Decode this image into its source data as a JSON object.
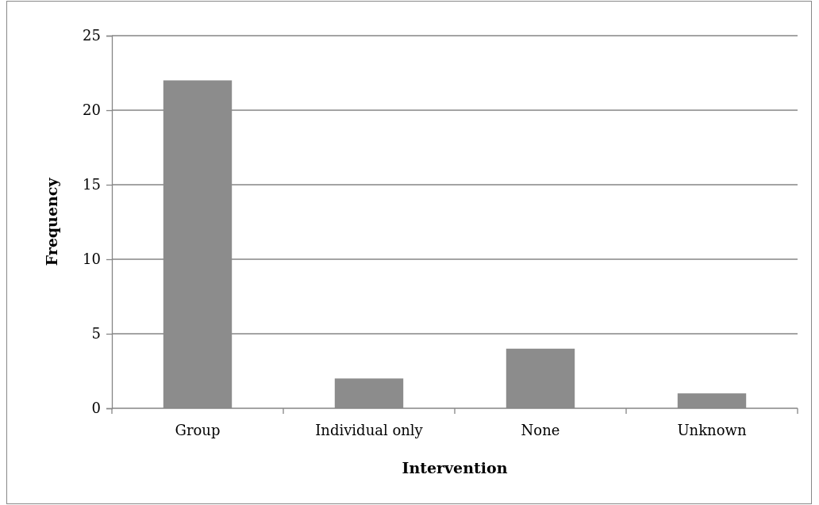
{
  "chart_data": {
    "type": "bar",
    "xlabel": "Intervention",
    "ylabel": "Frequency",
    "categories": [
      "Group",
      "Individual only",
      "None",
      "Unknown"
    ],
    "values": [
      22,
      2,
      4,
      1
    ],
    "color": "#8c8c8c",
    "ylim": [
      0,
      25
    ],
    "yticks": [
      0,
      5,
      10,
      15,
      20,
      25
    ],
    "grid": "y"
  }
}
